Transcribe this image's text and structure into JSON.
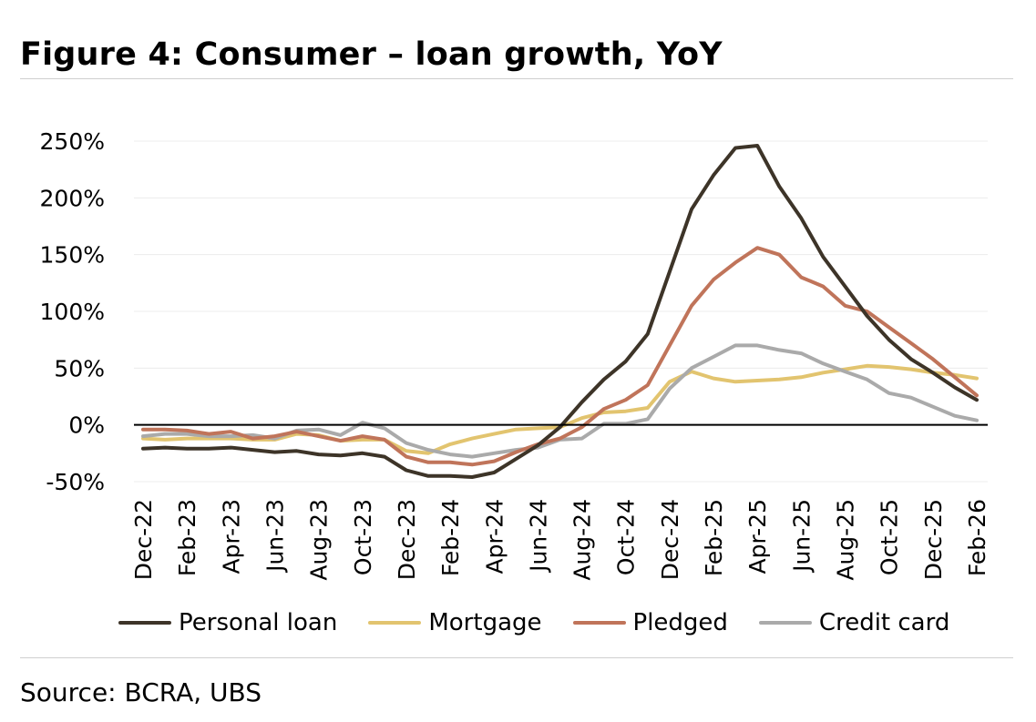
{
  "title": "Figure 4: Consumer – loan growth, YoY",
  "source": "Source: BCRA, UBS",
  "chart_data": {
    "type": "line",
    "title": "Figure 4: Consumer – loan growth, YoY",
    "xlabel": "",
    "ylabel": "",
    "ylim": [
      -50,
      250
    ],
    "y_ticks": [
      -50,
      0,
      50,
      100,
      150,
      200,
      250
    ],
    "y_tick_labels": [
      "-50%",
      "0%",
      "50%",
      "100%",
      "150%",
      "200%",
      "250%"
    ],
    "grid": true,
    "legend_position": "bottom",
    "x": [
      "Dec-22",
      "Jan-23",
      "Feb-23",
      "Mar-23",
      "Apr-23",
      "May-23",
      "Jun-23",
      "Jul-23",
      "Aug-23",
      "Sep-23",
      "Oct-23",
      "Nov-23",
      "Dec-23",
      "Jan-24",
      "Feb-24",
      "Mar-24",
      "Apr-24",
      "May-24",
      "Jun-24",
      "Jul-24",
      "Aug-24",
      "Sep-24",
      "Oct-24",
      "Nov-24",
      "Dec-24",
      "Jan-25",
      "Feb-25",
      "Mar-25",
      "Apr-25",
      "May-25",
      "Jun-25",
      "Jul-25",
      "Aug-25",
      "Sep-25",
      "Oct-25",
      "Nov-25",
      "Dec-25",
      "Jan-26",
      "Feb-26"
    ],
    "x_tick_labels": [
      "Dec-22",
      "Feb-23",
      "Apr-23",
      "Jun-23",
      "Aug-23",
      "Oct-23",
      "Dec-23",
      "Feb-24",
      "Apr-24",
      "Jun-24",
      "Aug-24",
      "Oct-24",
      "Dec-24",
      "Feb-25",
      "Apr-25",
      "Jun-25",
      "Aug-25",
      "Oct-25",
      "Dec-25",
      "Feb-26"
    ],
    "series": [
      {
        "name": "Personal loan",
        "color": "#3d3428",
        "values": [
          -21,
          -20,
          -21,
          -21,
          -20,
          -22,
          -24,
          -23,
          -26,
          -27,
          -25,
          -28,
          -40,
          -45,
          -45,
          -46,
          -42,
          -30,
          -18,
          -2,
          20,
          40,
          56,
          80,
          135,
          190,
          220,
          244,
          246,
          210,
          182,
          148,
          122,
          96,
          75,
          58,
          46,
          33,
          22
        ]
      },
      {
        "name": "Mortgage",
        "color": "#e2c46f",
        "values": [
          -12,
          -13,
          -12,
          -12,
          -12,
          -13,
          -13,
          -8,
          -9,
          -14,
          -13,
          -13,
          -23,
          -25,
          -17,
          -12,
          -8,
          -4,
          -3,
          -2,
          6,
          11,
          12,
          15,
          38,
          47,
          41,
          38,
          39,
          40,
          42,
          46,
          49,
          52,
          51,
          49,
          46,
          44,
          41
        ]
      },
      {
        "name": "Pledged",
        "color": "#c0745a",
        "values": [
          -4,
          -4,
          -5,
          -8,
          -6,
          -12,
          -10,
          -6,
          -10,
          -14,
          -10,
          -13,
          -28,
          -33,
          -33,
          -35,
          -32,
          -24,
          -17,
          -12,
          -2,
          14,
          22,
          35,
          70,
          105,
          128,
          143,
          156,
          150,
          130,
          122,
          105,
          100,
          86,
          72,
          58,
          42,
          26
        ]
      },
      {
        "name": "Credit card",
        "color": "#aaaaaa",
        "values": [
          -10,
          -8,
          -8,
          -10,
          -10,
          -9,
          -12,
          -5,
          -4,
          -9,
          2,
          -3,
          -16,
          -22,
          -26,
          -28,
          -25,
          -22,
          -20,
          -13,
          -12,
          1,
          1,
          5,
          32,
          50,
          60,
          70,
          70,
          66,
          63,
          54,
          47,
          40,
          28,
          24,
          16,
          8,
          4
        ]
      }
    ]
  }
}
